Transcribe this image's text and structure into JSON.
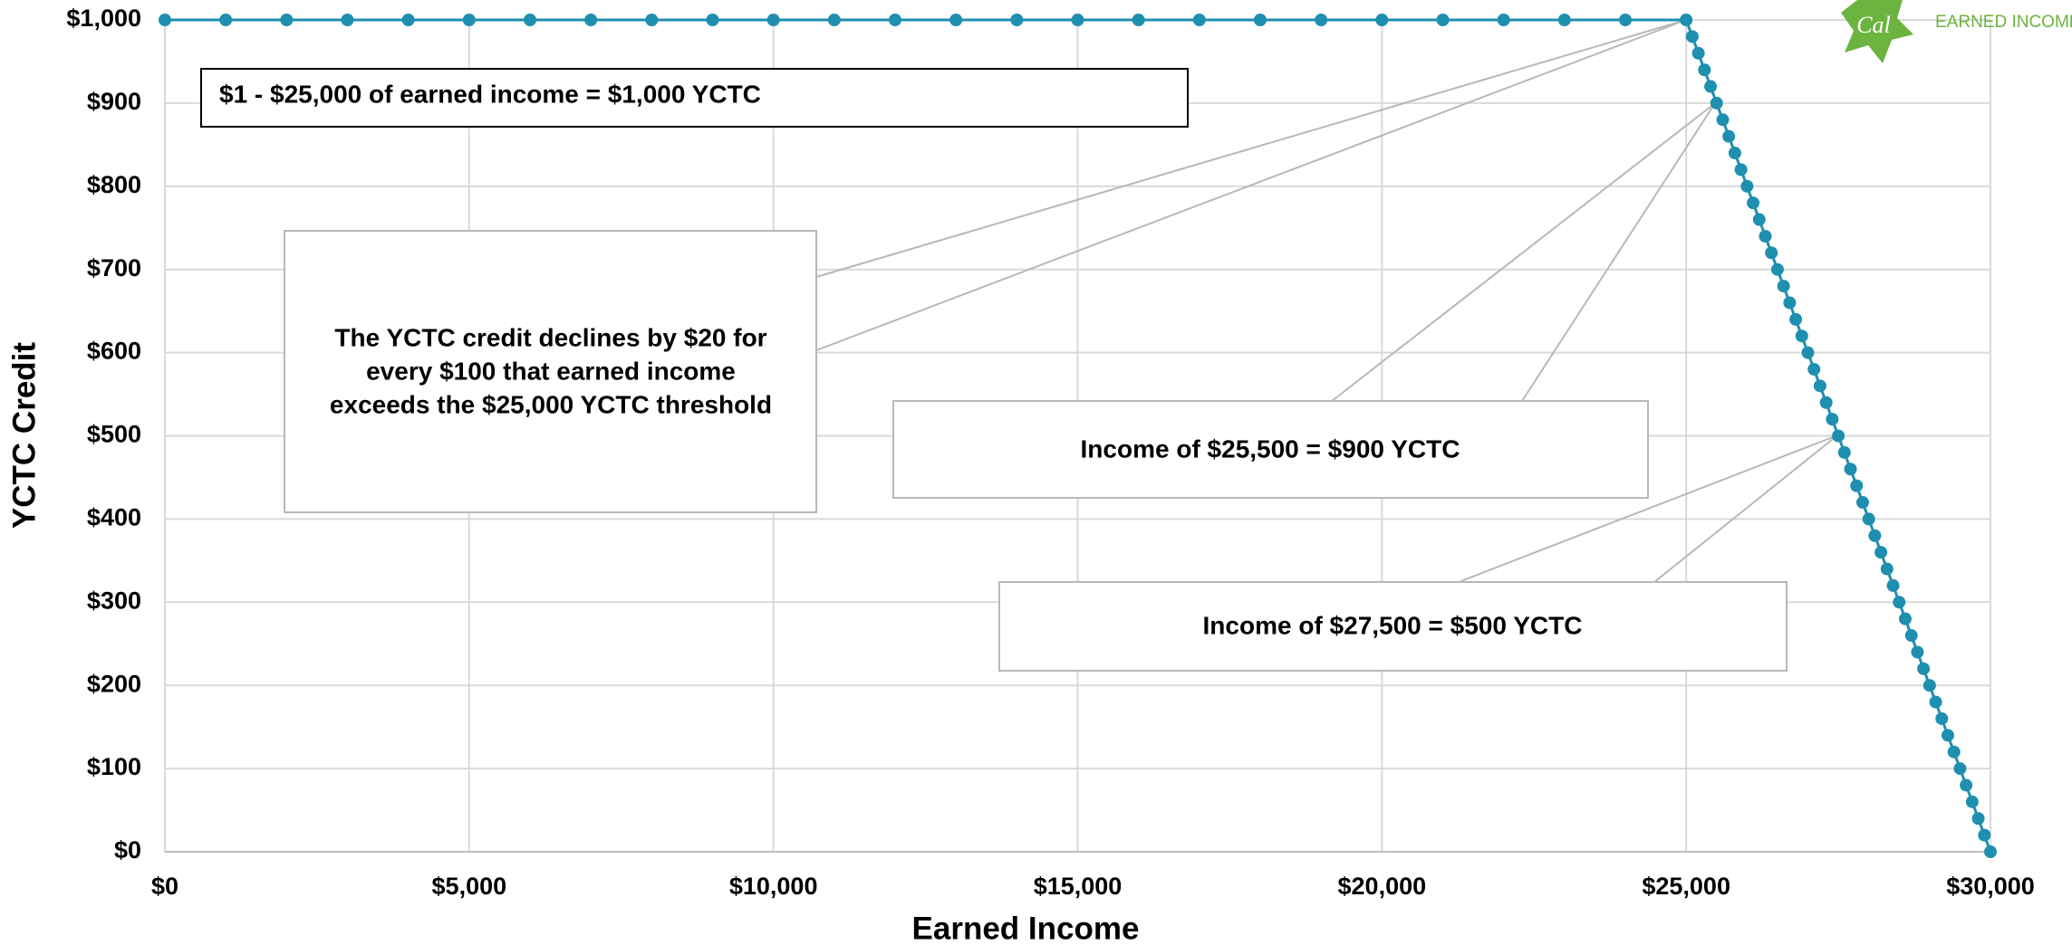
{
  "chart_data": {
    "type": "line",
    "x_label": "Earned Income",
    "y_label": "YCTC Credit",
    "x": [
      0,
      1000,
      2000,
      3000,
      4000,
      5000,
      6000,
      7000,
      8000,
      9000,
      10000,
      11000,
      12000,
      13000,
      14000,
      15000,
      16000,
      17000,
      18000,
      19000,
      20000,
      21000,
      22000,
      23000,
      24000,
      25000,
      25100,
      25200,
      25300,
      25400,
      25500,
      25600,
      25700,
      25800,
      25900,
      26000,
      26100,
      26200,
      26300,
      26400,
      26500,
      26600,
      26700,
      26800,
      26900,
      27000,
      27100,
      27200,
      27300,
      27400,
      27500,
      27600,
      27700,
      27800,
      27900,
      28000,
      28100,
      28200,
      28300,
      28400,
      28500,
      28600,
      28700,
      28800,
      28900,
      29000,
      29100,
      29200,
      29300,
      29400,
      29500,
      29600,
      29700,
      29800,
      29900,
      30000
    ],
    "series": [
      {
        "name": "YCTC Credit",
        "color": "#1f8fb0",
        "values": [
          1000,
          1000,
          1000,
          1000,
          1000,
          1000,
          1000,
          1000,
          1000,
          1000,
          1000,
          1000,
          1000,
          1000,
          1000,
          1000,
          1000,
          1000,
          1000,
          1000,
          1000,
          1000,
          1000,
          1000,
          1000,
          1000,
          980,
          960,
          940,
          920,
          900,
          880,
          860,
          840,
          820,
          800,
          780,
          760,
          740,
          720,
          700,
          680,
          660,
          640,
          620,
          600,
          580,
          560,
          540,
          520,
          500,
          480,
          460,
          440,
          420,
          400,
          380,
          360,
          340,
          320,
          300,
          280,
          260,
          240,
          220,
          200,
          180,
          160,
          140,
          120,
          100,
          80,
          60,
          40,
          20,
          0
        ]
      }
    ],
    "xlim": [
      0,
      30000
    ],
    "xticks": [
      {
        "value": 0,
        "label": "$0"
      },
      {
        "value": 5000,
        "label": "$5,000"
      },
      {
        "value": 10000,
        "label": "$10,000"
      },
      {
        "value": 15000,
        "label": "$15,000"
      },
      {
        "value": 20000,
        "label": "$20,000"
      },
      {
        "value": 25000,
        "label": "$25,000"
      },
      {
        "value": 30000,
        "label": "$30,000"
      }
    ],
    "ylim": [
      0,
      1000
    ],
    "yticks": [
      {
        "value": 0,
        "label": "$0"
      },
      {
        "value": 100,
        "label": "$100"
      },
      {
        "value": 200,
        "label": "$200"
      },
      {
        "value": 300,
        "label": "$300"
      },
      {
        "value": 400,
        "label": "$400"
      },
      {
        "value": 500,
        "label": "$500"
      },
      {
        "value": 600,
        "label": "$600"
      },
      {
        "value": 700,
        "label": "$700"
      },
      {
        "value": 800,
        "label": "$800"
      },
      {
        "value": 900,
        "label": "$900"
      },
      {
        "value": 1000,
        "label": "$1,000"
      }
    ],
    "grid": true,
    "annotations": [
      {
        "lines": [
          "$1 - $25,000 of earned income = $1,000 YCTC"
        ]
      },
      {
        "lines": [
          "The YCTC credit declines by $20 for",
          "every $100 that earned income",
          "exceeds the $25,000 YCTC threshold"
        ]
      },
      {
        "lines": [
          "Income of $25,500 = $900 YCTC"
        ]
      },
      {
        "lines": [
          "Income of $27,500 = $500 YCTC"
        ]
      }
    ],
    "logo": {
      "badge": "Cal",
      "text": "EARNED INCOME"
    }
  }
}
